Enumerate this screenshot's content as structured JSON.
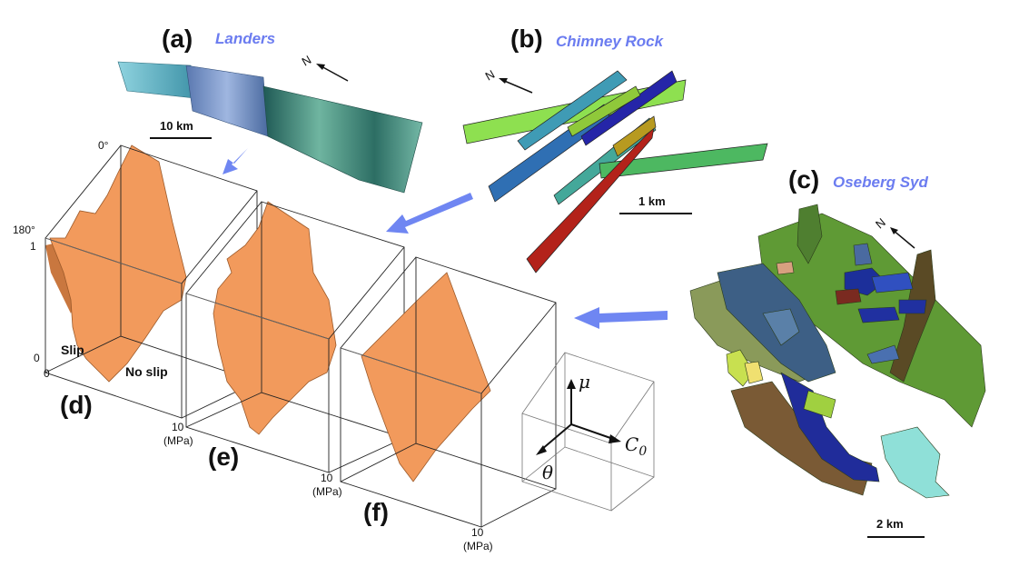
{
  "panels": {
    "a": {
      "label": "(a)",
      "name": "Landers",
      "scale": "10 km",
      "north": "N"
    },
    "b": {
      "label": "(b)",
      "name": "Chimney Rock",
      "scale": "1 km",
      "north": "N"
    },
    "c": {
      "label": "(c)",
      "name": "Oseberg Syd",
      "scale": "2 km",
      "north": "N"
    },
    "d": {
      "label": "(d)"
    },
    "e": {
      "label": "(e)"
    },
    "f": {
      "label": "(f)"
    }
  },
  "cube_d": {
    "theta_top": "0°",
    "theta_bottom": "180°",
    "mu_max": "1",
    "mu_min": "0",
    "c0_min": "0",
    "slip_label": "Slip",
    "noslip_label": "No slip"
  },
  "c0_max": {
    "value": "10",
    "unit": "(MPa)"
  },
  "axes_legend": {
    "mu": "μ",
    "theta": "θ",
    "c0": "C",
    "c0_sub": "0"
  },
  "colors": {
    "surface": "#f29a5c",
    "arrow": "#6f86f2"
  }
}
